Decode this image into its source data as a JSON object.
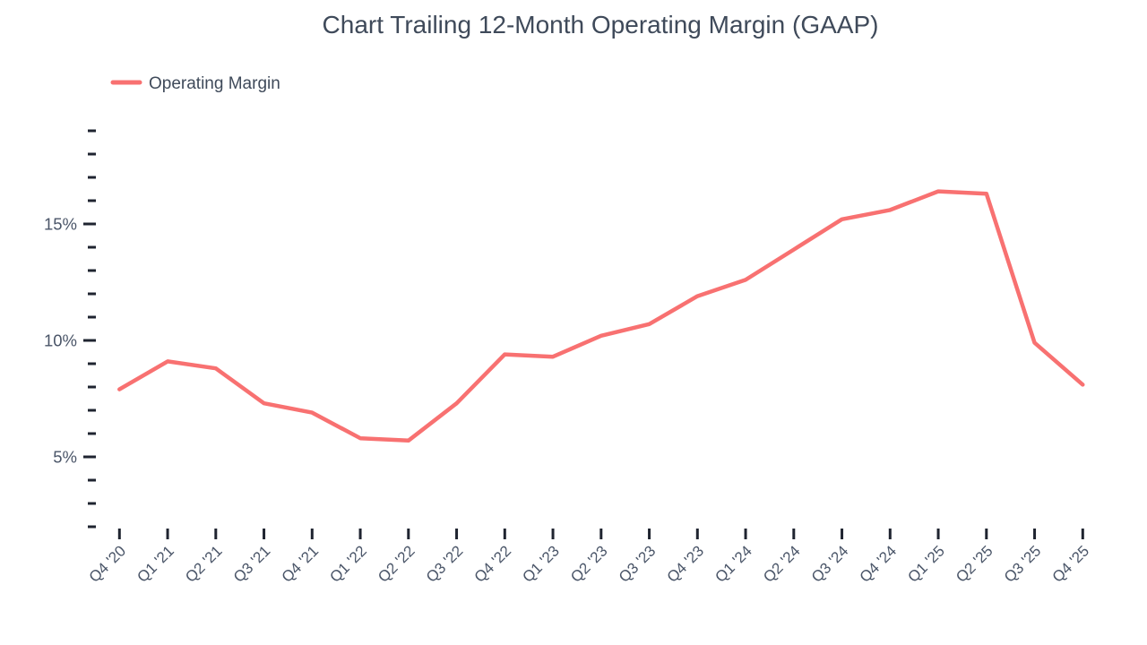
{
  "chart_data": {
    "type": "line",
    "title": "Chart Trailing 12-Month Operating Margin (GAAP)",
    "legend": {
      "position": "top-left",
      "items": [
        {
          "label": "Operating Margin",
          "color": "#f87171"
        }
      ]
    },
    "categories": [
      "Q4 '20",
      "Q1 '21",
      "Q2 '21",
      "Q3 '21",
      "Q4 '21",
      "Q1 '22",
      "Q2 '22",
      "Q3 '22",
      "Q4 '22",
      "Q1 '23",
      "Q2 '23",
      "Q3 '23",
      "Q4 '23",
      "Q1 '24",
      "Q2 '24",
      "Q3 '24",
      "Q4 '24",
      "Q1 '25",
      "Q2 '25",
      "Q3 '25",
      "Q4 '25"
    ],
    "series": [
      {
        "name": "Operating Margin",
        "color": "#f87171",
        "values": [
          7.9,
          9.1,
          8.8,
          7.3,
          6.9,
          5.8,
          5.7,
          7.3,
          9.4,
          9.3,
          10.2,
          10.7,
          11.9,
          12.6,
          13.9,
          15.2,
          15.6,
          16.4,
          16.3,
          9.9,
          8.1
        ]
      }
    ],
    "xlabel": "",
    "ylabel": "",
    "y_axis": {
      "unit": "%",
      "tick_min": 2,
      "tick_max": 19,
      "tick_step": 1,
      "labeled_ticks": [
        5,
        10,
        15
      ],
      "labeled_tick_texts": [
        "5%",
        "10%",
        "15%"
      ]
    },
    "x_axis": {
      "tick_count": 21
    },
    "grid": false
  },
  "colors": {
    "accent": "#f87171",
    "title_text": "#3f4a5a",
    "axis_text": "#4a5568",
    "tick_mark": "#1f2430",
    "background": "#ffffff"
  }
}
